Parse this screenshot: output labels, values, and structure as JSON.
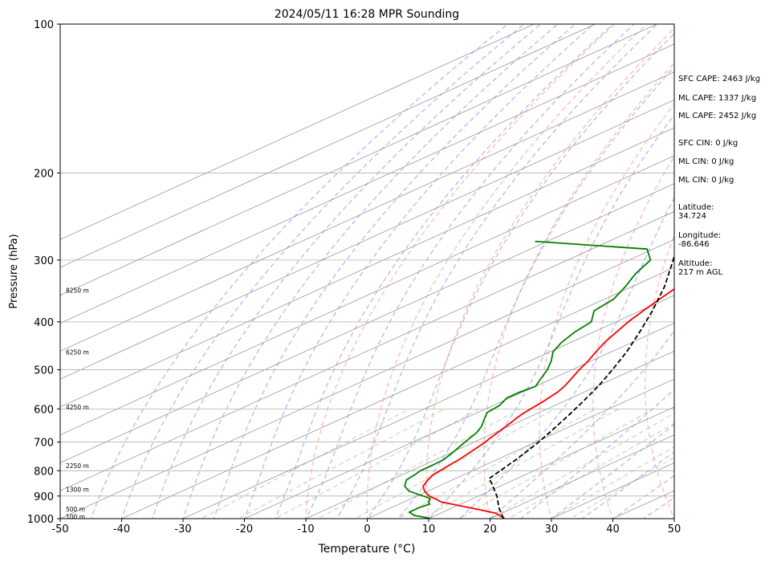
{
  "chart_data": {
    "type": "line",
    "title": "2024/05/11 16:28 MPR Sounding",
    "xlabel": "Temperature (°C)",
    "ylabel": "Pressure (hPa)",
    "xlim": [
      -50,
      50
    ],
    "ylim": [
      1000,
      100
    ],
    "yscale": "log",
    "skew": true,
    "grid": true,
    "x_ticks": [
      -50,
      -40,
      -30,
      -20,
      -10,
      0,
      10,
      20,
      30,
      40,
      50
    ],
    "y_ticks": [
      1000,
      900,
      800,
      700,
      600,
      500,
      400,
      300,
      200,
      100
    ],
    "height_labels": [
      {
        "p": 990,
        "label": "100 m"
      },
      {
        "p": 957,
        "label": "500 m"
      },
      {
        "p": 872,
        "label": "1300 m"
      },
      {
        "p": 782,
        "label": "2250 m"
      },
      {
        "p": 595,
        "label": "4250 m"
      },
      {
        "p": 460,
        "label": "6250 m"
      },
      {
        "p": 345,
        "label": "8250 m"
      }
    ],
    "series": [
      {
        "color": "#ff0000",
        "p": [
          998,
          990,
          975,
          955,
          940,
          925,
          915,
          900,
          880,
          860,
          835,
          815,
          800,
          780,
          760,
          740,
          720,
          700,
          690,
          665,
          650,
          630,
          615,
          600,
          580,
          555,
          540,
          520,
          500,
          480,
          460,
          440,
          420,
          400,
          380,
          360,
          340,
          320,
          300,
          285,
          270,
          258
        ],
        "t": [
          22.2,
          21,
          19,
          14,
          10,
          6,
          4.5,
          2,
          -0.5,
          -2.5,
          -4,
          -5,
          -5.3,
          -5.8,
          -6.2,
          -6.8,
          -7.5,
          -8.2,
          -8.7,
          -9.8,
          -10.5,
          -11.5,
          -12.2,
          -12.7,
          -13.3,
          -14.3,
          -15.3,
          -17,
          -18.8,
          -20.5,
          -22.5,
          -24.5,
          -26.2,
          -28,
          -29.5,
          -31,
          -32.5,
          -34,
          -35.5,
          -37,
          -38.5,
          -40
        ]
      },
      {
        "color": "#008000",
        "p": [
          998,
          985,
          970,
          950,
          935,
          925,
          910,
          895,
          880,
          860,
          835,
          815,
          800,
          780,
          760,
          740,
          720,
          700,
          690,
          670,
          650,
          630,
          610,
          590,
          570,
          555,
          540,
          520,
          500,
          480,
          460,
          440,
          420,
          400,
          380,
          360,
          340,
          320,
          300,
          285,
          275
        ],
        "t": [
          10,
          6.5,
          4.5,
          4.5,
          5,
          4,
          3,
          0,
          -3,
          -5.5,
          -7.5,
          -8,
          -8.5,
          -8.5,
          -8.7,
          -9.5,
          -10.5,
          -11.5,
          -12,
          -13,
          -14.5,
          -16.5,
          -18.5,
          -19,
          -20.5,
          -20.5,
          -20,
          -22,
          -24,
          -26.5,
          -29.5,
          -31.5,
          -33,
          -34,
          -37.5,
          -38.5,
          -41,
          -44,
          -46.5,
          -51,
          -72
        ]
      },
      {
        "color": "#000000",
        "dashed": true,
        "p": [
          1000,
          950,
          900,
          850,
          830,
          800,
          760,
          720,
          700,
          660,
          620,
          580,
          540,
          500,
          460,
          420,
          380,
          340,
          300,
          280,
          260
        ],
        "t": [
          22.2,
          17.5,
          13,
          7.8,
          5.5,
          4.5,
          3.1,
          1.4,
          0.5,
          -1.7,
          -4.1,
          -6.8,
          -9.8,
          -13.4,
          -17.5,
          -22.4,
          -28,
          -34.6,
          -42.8,
          -47.5,
          -52.8
        ]
      }
    ],
    "background_lines": {
      "dry_adiabats_theta_C": [
        -10,
        0,
        10,
        20,
        30,
        40,
        50,
        60,
        70,
        80,
        90,
        100,
        110,
        120,
        130,
        140,
        150,
        160,
        170,
        180
      ],
      "moist_adiabats_start_C": [
        -45,
        -40,
        -35,
        -30,
        -25,
        -20,
        -15,
        -10,
        -5,
        0,
        5,
        10,
        15,
        20,
        25,
        30,
        35,
        40,
        45,
        50
      ],
      "mixing_ratio_C_at_1000": [
        -27,
        -21,
        -15,
        -8,
        -2,
        5,
        9,
        15,
        20,
        23,
        30,
        33
      ]
    },
    "info": {
      "sfc_cape": "SFC CAPE: 2463 J/kg",
      "ml_cape_1": "ML CAPE: 1337 J/kg",
      "ml_cape_2": "ML CAPE: 2452 J/kg",
      "sfc_cin": "SFC CIN: 0 J/kg",
      "ml_cin_1": "ML CIN: 0 J/kg",
      "ml_cin_2": "ML CIN: 0 J/kg",
      "latitude": "Latitude:\n34.724",
      "longitude": "Longitude:\n-86.646",
      "altitude": "Altitude:\n217 m AGL"
    },
    "colors": {
      "temperature": "#ff0000",
      "dewpoint": "#008000",
      "parcel": "#000000",
      "dry_adiabat": "#ff9999",
      "moist_adiabat": "#9988ee",
      "mixing_ratio": "#99cc99",
      "isotherm": "#999999"
    }
  }
}
